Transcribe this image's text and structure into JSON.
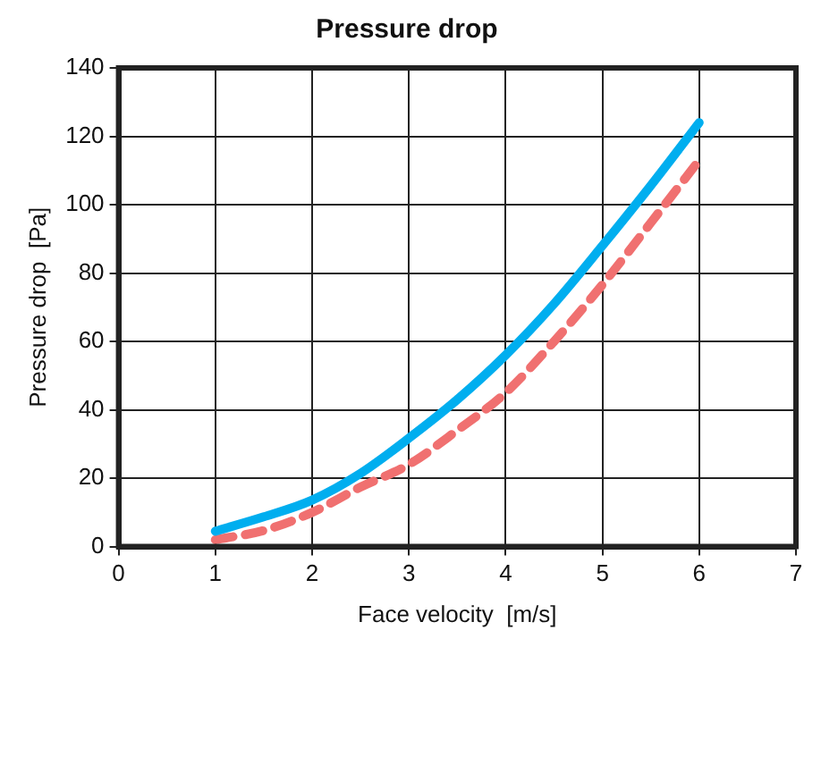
{
  "chart_data": {
    "type": "line",
    "title": "Pressure drop",
    "xlabel": "Face velocity  [m/s]",
    "ylabel": "Pressure drop  [Pa]",
    "xlim": [
      0,
      7
    ],
    "xticks": [
      0,
      1,
      2,
      3,
      4,
      5,
      6,
      7
    ],
    "ylim": [
      0,
      140
    ],
    "yticks": [
      0,
      20,
      40,
      60,
      80,
      100,
      120,
      140
    ],
    "grid": true,
    "marker": "none",
    "series": [
      {
        "color": "#00aeef",
        "line_style": "solid",
        "x": [
          1,
          1.5,
          2,
          2.5,
          3,
          3.5,
          4,
          4.5,
          5,
          5.5,
          6
        ],
        "values": [
          4.5,
          8.7,
          13.6,
          21.4,
          31.7,
          43,
          56,
          71,
          88,
          105.6,
          124
        ]
      },
      {
        "color": "#f07070",
        "line_style": "dashed",
        "x": [
          1,
          1.5,
          2,
          2.5,
          3,
          3.5,
          4,
          4.5,
          5,
          5.5,
          6
        ],
        "values": [
          2,
          4.7,
          10,
          17.4,
          24,
          34,
          45,
          60,
          76.6,
          94.7,
          113
        ]
      }
    ]
  }
}
